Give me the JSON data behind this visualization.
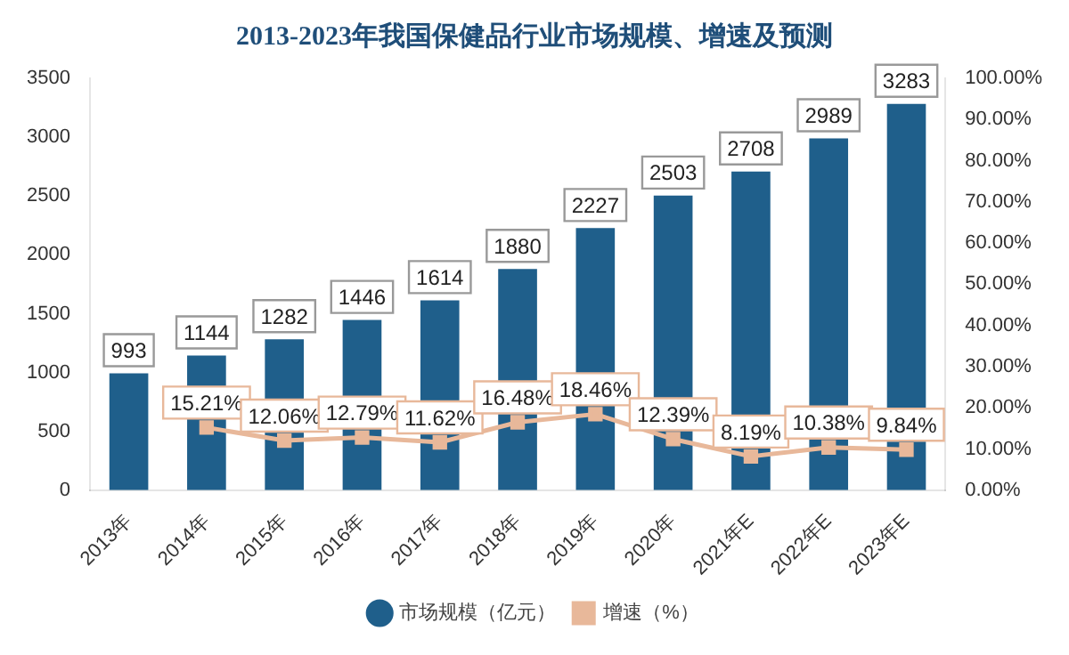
{
  "chart_data": {
    "type": "bar",
    "title": "2013-2023年我国保健品行业市场规模、增速及预测",
    "categories": [
      "2013年",
      "2014年",
      "2015年",
      "2016年",
      "2017年",
      "2018年",
      "2019年",
      "2020年",
      "2021年E",
      "2022年E",
      "2023年E"
    ],
    "series": [
      {
        "name": "市场规模（亿元）",
        "color": "#1f5f8b",
        "values": [
          993,
          1144,
          1282,
          1446,
          1614,
          1880,
          2227,
          2503,
          2708,
          2989,
          3283
        ],
        "value_labels": [
          "993",
          "1144",
          "1282",
          "1446",
          "1614",
          "1880",
          "2227",
          "2503",
          "2708",
          "2989",
          "3283"
        ]
      },
      {
        "name": "增速（%）",
        "type": "line",
        "axis": "y2",
        "color": "#e8b89a",
        "values": [
          null,
          15.21,
          12.06,
          12.79,
          11.62,
          16.48,
          18.46,
          12.39,
          8.19,
          10.38,
          9.84
        ],
        "value_labels": [
          null,
          "15.21%",
          "12.06%",
          "12.79%",
          "11.62%",
          "16.48%",
          "18.46%",
          "12.39%",
          "8.19%",
          "10.38%",
          "9.84%"
        ]
      }
    ],
    "ylim": [
      0,
      3500
    ],
    "yticks": [
      0,
      500,
      1000,
      1500,
      2000,
      2500,
      3000,
      3500
    ],
    "y2lim": [
      0,
      100
    ],
    "y2ticks": [
      {
        "value": 0,
        "label": "0.00%"
      },
      {
        "value": 10,
        "label": "10.00%"
      },
      {
        "value": 20,
        "label": "20.00%"
      },
      {
        "value": 30,
        "label": "30.00%"
      },
      {
        "value": 40,
        "label": "40.00%"
      },
      {
        "value": 50,
        "label": "50.00%"
      },
      {
        "value": 60,
        "label": "60.00%"
      },
      {
        "value": 70,
        "label": "70.00%"
      },
      {
        "value": 80,
        "label": "80.00%"
      },
      {
        "value": 90,
        "label": "90.00%"
      },
      {
        "value": 100,
        "label": "100.00%"
      }
    ],
    "marker": "square",
    "legend": "bottom",
    "grid": false
  }
}
